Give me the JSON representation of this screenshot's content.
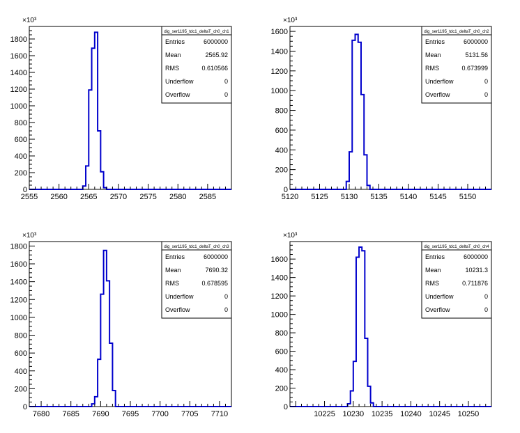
{
  "chart_data": [
    {
      "type": "histogram",
      "name": "dig_ser1195_tdc1_deltaT_ch0_ch1",
      "y_multiplier_label": "×10³",
      "xlim": [
        2555,
        2589
      ],
      "ylim": [
        0,
        1950
      ],
      "x_ticks": [
        "2555",
        "2560",
        "2565",
        "2570",
        "2575",
        "2580",
        "2585"
      ],
      "y_ticks": [
        "0",
        "200",
        "400",
        "600",
        "800",
        "1000",
        "1200",
        "1400",
        "1600",
        "1800"
      ],
      "bin_width": 0.5,
      "x": [
        2564.0,
        2564.5,
        2565.0,
        2565.5,
        2566.0,
        2566.5,
        2567.0,
        2567.5
      ],
      "values": [
        40,
        280,
        1190,
        1690,
        1880,
        700,
        210,
        20
      ],
      "stats": [
        {
          "label": "Entries",
          "value": "6000000"
        },
        {
          "label": "Mean",
          "value": "2565.92"
        },
        {
          "label": "RMS",
          "value": "0.610566"
        },
        {
          "label": "Underflow",
          "value": "0"
        },
        {
          "label": "Overflow",
          "value": "0"
        }
      ]
    },
    {
      "type": "histogram",
      "name": "dig_ser1195_tdc1_deltaT_ch0_ch2",
      "y_multiplier_label": "×10³",
      "xlim": [
        5120,
        5154
      ],
      "ylim": [
        0,
        1650
      ],
      "x_ticks": [
        "5120",
        "5125",
        "5130",
        "5135",
        "5140",
        "5145",
        "5150"
      ],
      "y_ticks": [
        "0",
        "200",
        "400",
        "600",
        "800",
        "1000",
        "1200",
        "1400",
        "1600"
      ],
      "bin_width": 0.5,
      "x": [
        5129.5,
        5130.0,
        5130.5,
        5131.0,
        5131.5,
        5132.0,
        5132.5,
        5133.0
      ],
      "values": [
        80,
        380,
        1510,
        1570,
        1490,
        960,
        350,
        40
      ],
      "stats": [
        {
          "label": "Entries",
          "value": "6000000"
        },
        {
          "label": "Mean",
          "value": "5131.56"
        },
        {
          "label": "RMS",
          "value": "0.673999"
        },
        {
          "label": "Underflow",
          "value": "0"
        },
        {
          "label": "Overflow",
          "value": "0"
        }
      ]
    },
    {
      "type": "histogram",
      "name": "dig_ser1195_tdc1_deltaT_ch0_ch3",
      "y_multiplier_label": "×10³",
      "xlim": [
        7678,
        7712
      ],
      "ylim": [
        0,
        1850
      ],
      "x_ticks": [
        "7680",
        "7685",
        "7690",
        "7695",
        "7700",
        "7705",
        "7710"
      ],
      "y_ticks": [
        "0",
        "200",
        "400",
        "600",
        "800",
        "1000",
        "1200",
        "1400",
        "1600",
        "1800"
      ],
      "bin_width": 0.5,
      "x": [
        7688.5,
        7689.0,
        7689.5,
        7690.0,
        7690.5,
        7691.0,
        7691.5,
        7692.0
      ],
      "values": [
        30,
        110,
        530,
        1260,
        1750,
        1410,
        710,
        180
      ],
      "stats": [
        {
          "label": "Entries",
          "value": "6000000"
        },
        {
          "label": "Mean",
          "value": "7690.32"
        },
        {
          "label": "RMS",
          "value": "0.678595"
        },
        {
          "label": "Underflow",
          "value": "0"
        },
        {
          "label": "Overflow",
          "value": "0"
        }
      ]
    },
    {
      "type": "histogram",
      "name": "dig_ser1195_tdc1_deltaT_ch0_ch4",
      "y_multiplier_label": "×10³",
      "xlim": [
        10219,
        10254
      ],
      "ylim": [
        0,
        1790
      ],
      "x_ticks": [
        "10225",
        "10230",
        "10235",
        "10240",
        "10245",
        "10250"
      ],
      "y_ticks": [
        "0",
        "200",
        "400",
        "600",
        "800",
        "1000",
        "1200",
        "1400",
        "1600"
      ],
      "bin_width": 0.5,
      "x": [
        10229.0,
        10229.5,
        10230.0,
        10230.5,
        10231.0,
        10231.5,
        10232.0,
        10232.5,
        10233.0
      ],
      "values": [
        30,
        170,
        490,
        1620,
        1730,
        1690,
        740,
        220,
        40
      ],
      "stats": [
        {
          "label": "Entries",
          "value": "6000000"
        },
        {
          "label": "Mean",
          "value": "10231.3"
        },
        {
          "label": "RMS",
          "value": "0.711876"
        },
        {
          "label": "Underflow",
          "value": "0"
        },
        {
          "label": "Overflow",
          "value": "0"
        }
      ]
    }
  ],
  "style": {
    "line_color": "#0000cc",
    "axis_color": "#000000",
    "background": "#ffffff"
  }
}
